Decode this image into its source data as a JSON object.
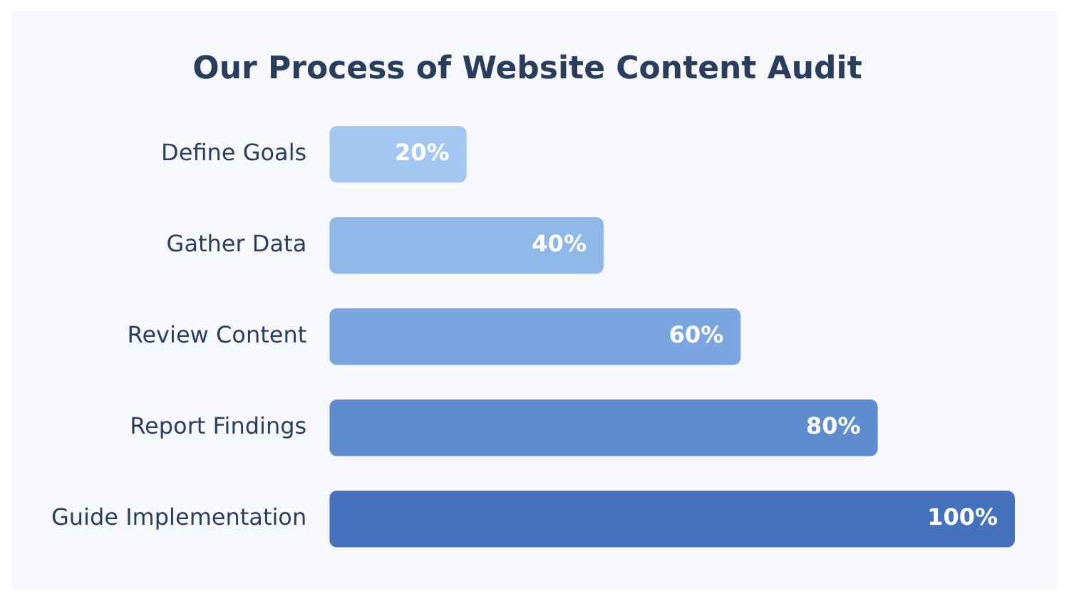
{
  "chart_data": {
    "type": "bar",
    "orientation": "horizontal",
    "title": "Our Process of Website Content Audit",
    "categories": [
      "Define Goals",
      "Gather Data",
      "Review Content",
      "Report Findings",
      "Guide Implementation"
    ],
    "values": [
      20,
      40,
      60,
      80,
      100
    ],
    "colors": [
      "#a3c7f0",
      "#8fb8e8",
      "#7aa5de",
      "#5f8ccf",
      "#4571bd"
    ],
    "xlim": [
      0,
      100
    ],
    "tick_labels": "y",
    "data_labels": true,
    "value_labels": [
      "20%",
      "40%",
      "60%",
      "80%",
      "100%"
    ],
    "legend": false
  }
}
